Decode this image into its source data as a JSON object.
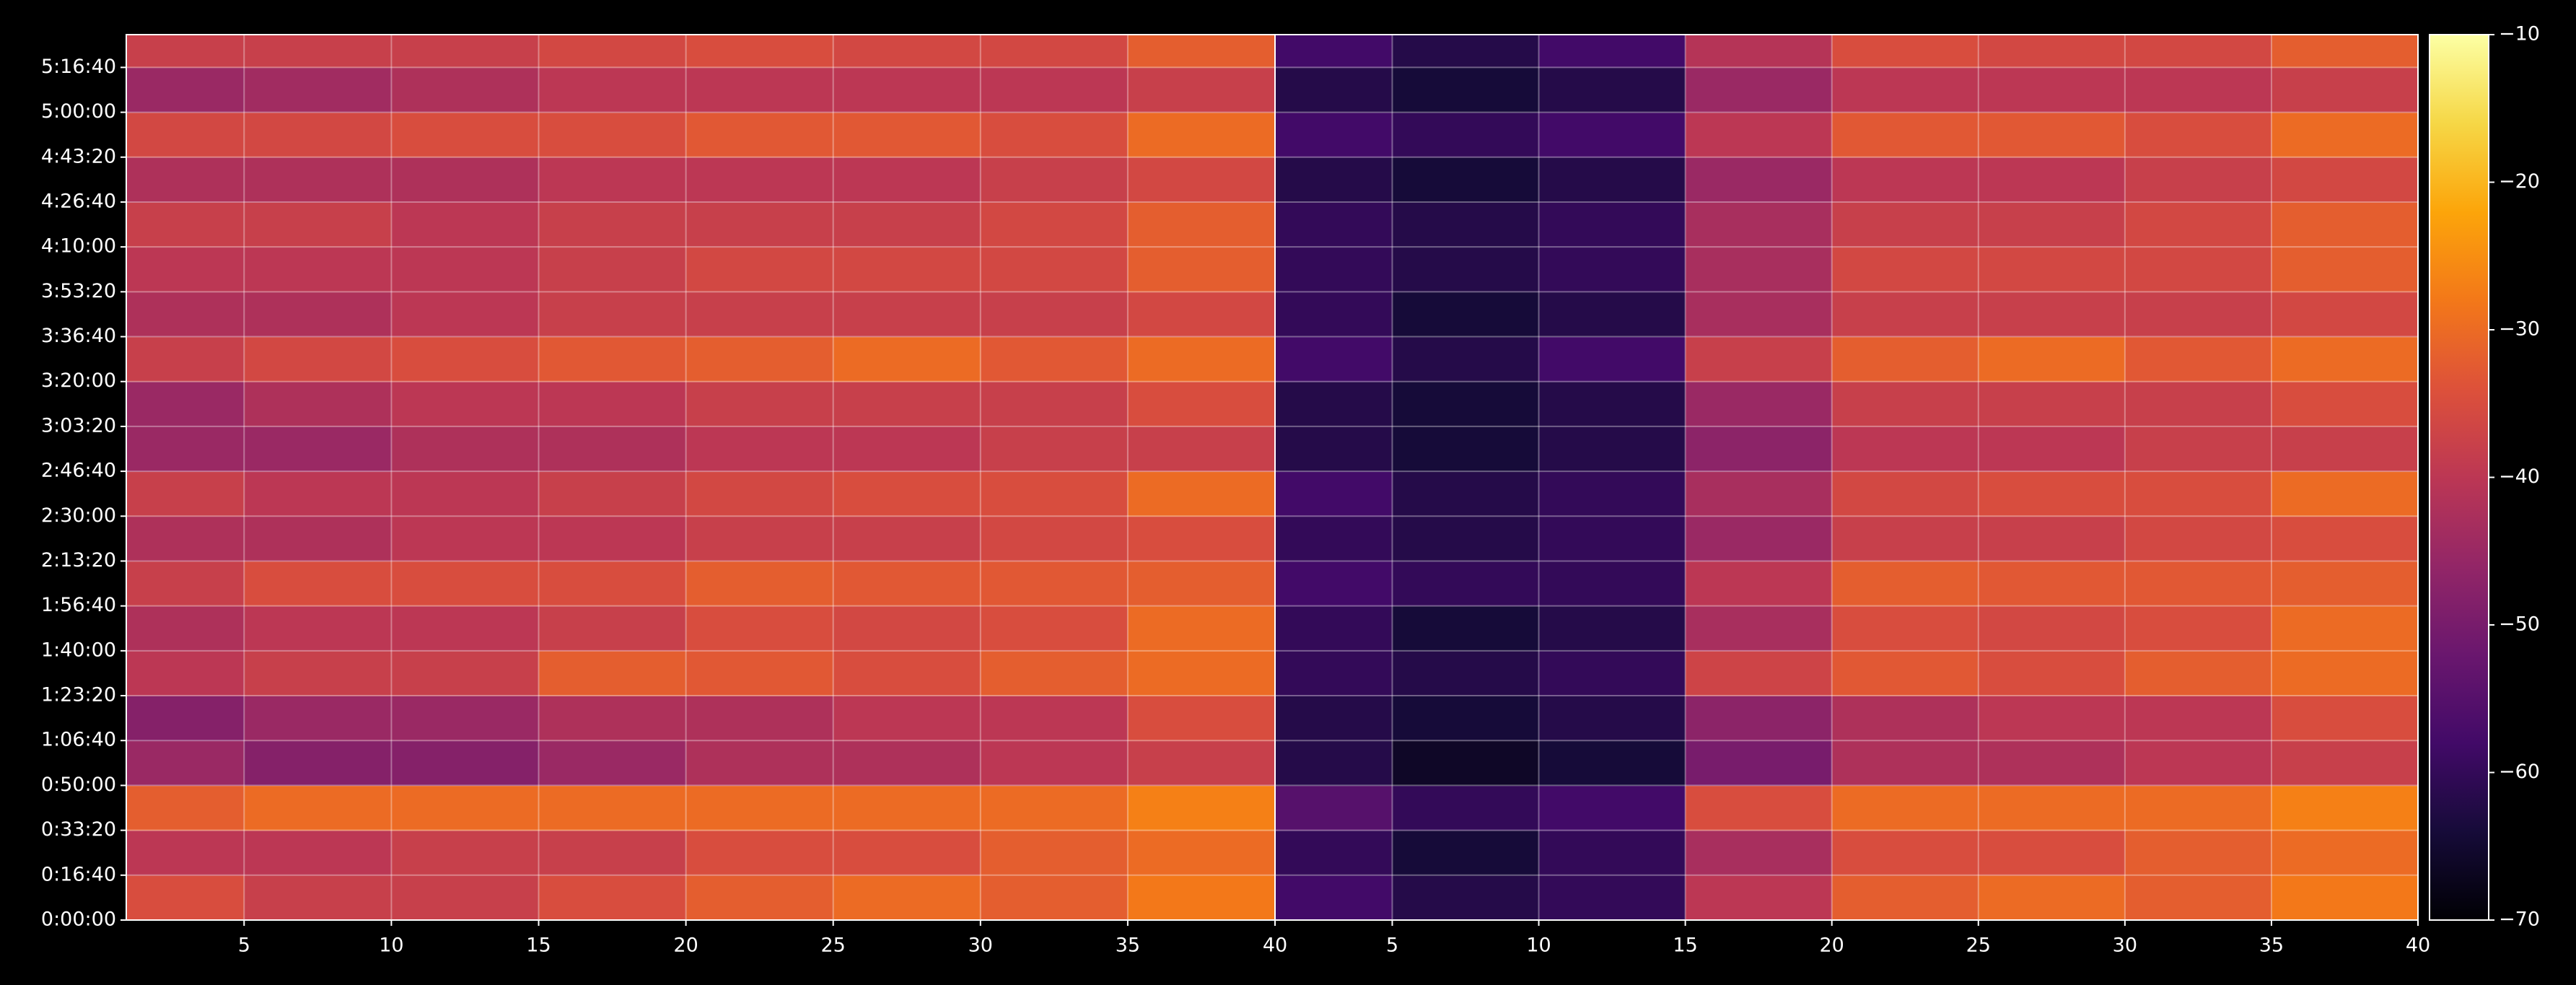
{
  "chart_data": [
    {
      "type": "heatmap",
      "xlim": [
        1,
        40
      ],
      "xticks": [
        5,
        10,
        15,
        20,
        25,
        30,
        35,
        40
      ],
      "ylim": [
        0,
        19730
      ],
      "yticks": [
        {
          "value": 0,
          "label": "0:00:00"
        },
        {
          "value": 1000,
          "label": "0:16:40"
        },
        {
          "value": 2000,
          "label": "0:33:20"
        },
        {
          "value": 3000,
          "label": "0:50:00"
        },
        {
          "value": 4000,
          "label": "1:06:40"
        },
        {
          "value": 5000,
          "label": "1:23:20"
        },
        {
          "value": 6000,
          "label": "1:40:00"
        },
        {
          "value": 7000,
          "label": "1:56:40"
        },
        {
          "value": 8000,
          "label": "2:13:20"
        },
        {
          "value": 9000,
          "label": "2:30:00"
        },
        {
          "value": 10000,
          "label": "2:46:40"
        },
        {
          "value": 11000,
          "label": "3:03:20"
        },
        {
          "value": 12000,
          "label": "3:20:00"
        },
        {
          "value": 13000,
          "label": "3:36:40"
        },
        {
          "value": 14000,
          "label": "3:53:20"
        },
        {
          "value": 15000,
          "label": "4:10:00"
        },
        {
          "value": 16000,
          "label": "4:26:40"
        },
        {
          "value": 17000,
          "label": "4:43:20"
        },
        {
          "value": 18000,
          "label": "5:00:00"
        },
        {
          "value": 19000,
          "label": "5:16:40"
        }
      ],
      "grid": true,
      "xbins": [
        1,
        5,
        10,
        15,
        20,
        25,
        30,
        35,
        40
      ],
      "ybins": [
        0,
        1000,
        2000,
        3000,
        4000,
        5000,
        6000,
        7000,
        8000,
        9000,
        10000,
        11000,
        12000,
        13000,
        14000,
        15000,
        16000,
        17000,
        18000,
        19000,
        19730
      ],
      "z": [
        [
          -35,
          -38,
          -38,
          -35,
          -32,
          -30,
          -32,
          -28
        ],
        [
          -40,
          -40,
          -38,
          -38,
          -35,
          -35,
          -32,
          -30
        ],
        [
          -32,
          -30,
          -30,
          -30,
          -30,
          -30,
          -30,
          -27
        ],
        [
          -45,
          -48,
          -48,
          -45,
          -42,
          -42,
          -40,
          -38
        ],
        [
          -48,
          -45,
          -45,
          -42,
          -42,
          -40,
          -40,
          -35
        ],
        [
          -40,
          -38,
          -38,
          -32,
          -33,
          -35,
          -32,
          -30
        ],
        [
          -42,
          -40,
          -40,
          -38,
          -35,
          -36,
          -35,
          -30
        ],
        [
          -38,
          -35,
          -35,
          -35,
          -32,
          -33,
          -33,
          -32
        ],
        [
          -42,
          -42,
          -40,
          -40,
          -38,
          -38,
          -36,
          -35
        ],
        [
          -38,
          -40,
          -40,
          -38,
          -36,
          -35,
          -35,
          -30
        ],
        [
          -45,
          -45,
          -42,
          -42,
          -40,
          -40,
          -38,
          -38
        ],
        [
          -45,
          -42,
          -40,
          -40,
          -38,
          -38,
          -38,
          -35
        ],
        [
          -38,
          -36,
          -35,
          -33,
          -32,
          -30,
          -33,
          -30
        ],
        [
          -42,
          -42,
          -40,
          -38,
          -38,
          -38,
          -38,
          -36
        ],
        [
          -40,
          -40,
          -40,
          -38,
          -36,
          -36,
          -36,
          -32
        ],
        [
          -38,
          -38,
          -40,
          -38,
          -38,
          -38,
          -36,
          -32
        ],
        [
          -42,
          -42,
          -42,
          -40,
          -40,
          -40,
          -38,
          -36
        ],
        [
          -36,
          -36,
          -35,
          -35,
          -33,
          -33,
          -35,
          -30
        ],
        [
          -45,
          -44,
          -42,
          -40,
          -40,
          -40,
          -40,
          -38
        ],
        [
          -38,
          -38,
          -38,
          -36,
          -35,
          -36,
          -36,
          -32
        ]
      ]
    },
    {
      "type": "heatmap",
      "xlim": [
        1,
        40
      ],
      "xticks": [
        5,
        10,
        15,
        20,
        25,
        30,
        35,
        40
      ],
      "ylim": [
        0,
        19730
      ],
      "yticks": [
        0,
        1000,
        2000,
        3000,
        4000,
        5000,
        6000,
        7000,
        8000,
        9000,
        10000,
        11000,
        12000,
        13000,
        14000,
        15000,
        16000,
        17000,
        18000,
        19000
      ],
      "show_ytick_labels": false,
      "grid": true,
      "xbins": [
        1,
        5,
        10,
        15,
        20,
        25,
        30,
        35,
        40
      ],
      "ybins": [
        0,
        1000,
        2000,
        3000,
        4000,
        5000,
        6000,
        7000,
        8000,
        9000,
        10000,
        11000,
        12000,
        13000,
        14000,
        15000,
        16000,
        17000,
        18000,
        19000,
        19730
      ],
      "z": [
        [
          -58,
          -62,
          -60,
          -40,
          -32,
          -30,
          -32,
          -28
        ],
        [
          -60,
          -64,
          -60,
          -43,
          -35,
          -35,
          -32,
          -30
        ],
        [
          -55,
          -60,
          -58,
          -35,
          -30,
          -30,
          -30,
          -27
        ],
        [
          -62,
          -66,
          -64,
          -50,
          -42,
          -42,
          -40,
          -38
        ],
        [
          -62,
          -64,
          -62,
          -47,
          -42,
          -40,
          -40,
          -35
        ],
        [
          -60,
          -62,
          -60,
          -37,
          -33,
          -35,
          -32,
          -30
        ],
        [
          -60,
          -64,
          -62,
          -43,
          -35,
          -36,
          -35,
          -30
        ],
        [
          -58,
          -60,
          -60,
          -40,
          -32,
          -33,
          -33,
          -32
        ],
        [
          -60,
          -62,
          -60,
          -45,
          -38,
          -38,
          -36,
          -35
        ],
        [
          -58,
          -62,
          -60,
          -43,
          -36,
          -35,
          -35,
          -30
        ],
        [
          -62,
          -64,
          -62,
          -47,
          -40,
          -40,
          -38,
          -38
        ],
        [
          -62,
          -64,
          -62,
          -45,
          -38,
          -38,
          -38,
          -35
        ],
        [
          -58,
          -62,
          -58,
          -38,
          -32,
          -30,
          -33,
          -30
        ],
        [
          -60,
          -64,
          -62,
          -43,
          -38,
          -38,
          -38,
          -36
        ],
        [
          -60,
          -62,
          -60,
          -43,
          -36,
          -36,
          -36,
          -32
        ],
        [
          -60,
          -62,
          -60,
          -43,
          -38,
          -38,
          -36,
          -32
        ],
        [
          -62,
          -64,
          -62,
          -45,
          -40,
          -40,
          -38,
          -36
        ],
        [
          -58,
          -60,
          -58,
          -40,
          -33,
          -33,
          -35,
          -30
        ],
        [
          -62,
          -64,
          -62,
          -45,
          -40,
          -40,
          -40,
          -38
        ],
        [
          -58,
          -62,
          -58,
          -41,
          -35,
          -36,
          -36,
          -32
        ]
      ]
    }
  ],
  "colorbar": {
    "colormap": "inferno",
    "clim": [
      -70,
      -10
    ],
    "ticks": [
      {
        "value": -70,
        "label": "−70"
      },
      {
        "value": -60,
        "label": "−60"
      },
      {
        "value": -50,
        "label": "−50"
      },
      {
        "value": -40,
        "label": "−40"
      },
      {
        "value": -30,
        "label": "−30"
      },
      {
        "value": -20,
        "label": "−20"
      },
      {
        "value": -10,
        "label": "−10"
      }
    ]
  }
}
